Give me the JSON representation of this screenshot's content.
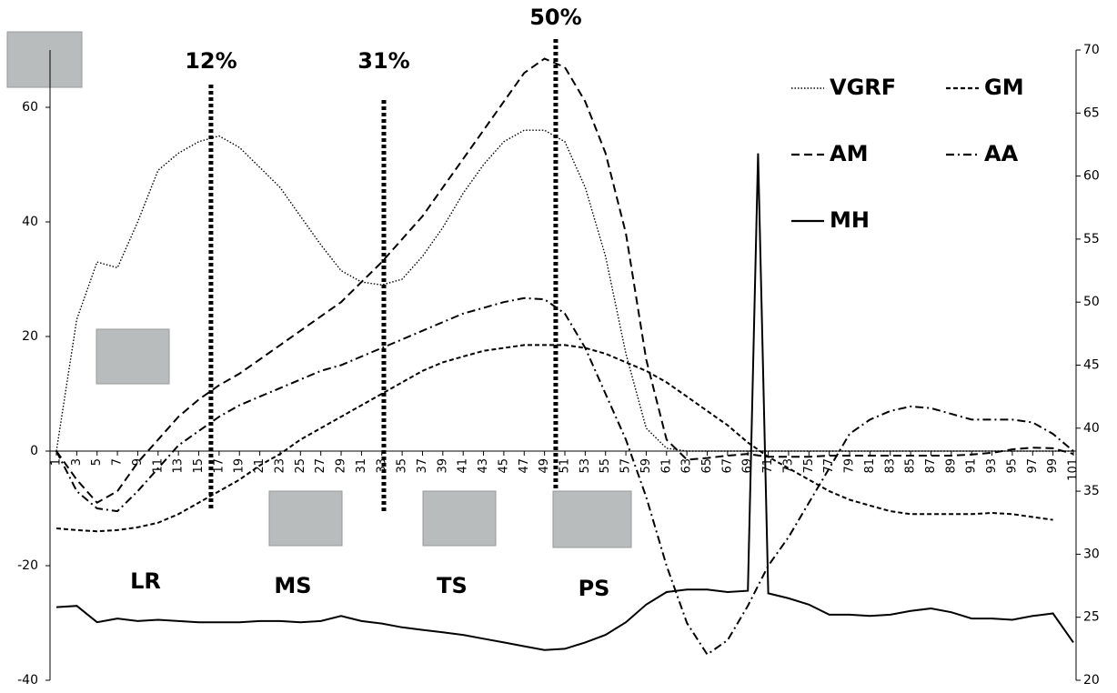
{
  "chart_data": {
    "type": "line",
    "x": [
      1,
      3,
      5,
      7,
      9,
      11,
      13,
      15,
      17,
      19,
      21,
      23,
      25,
      27,
      29,
      31,
      33,
      35,
      37,
      39,
      41,
      43,
      45,
      47,
      49,
      51,
      53,
      55,
      57,
      59,
      61,
      63,
      65,
      67,
      69,
      71,
      73,
      75,
      77,
      79,
      81,
      83,
      85,
      87,
      89,
      91,
      93,
      95,
      97,
      99,
      101
    ],
    "xlim": [
      1,
      101
    ],
    "ylim": [
      -40,
      70
    ],
    "yticks": [
      -40,
      -20,
      0,
      20,
      40,
      60
    ],
    "y2lim": [
      20,
      70
    ],
    "y2ticks": [
      20,
      25,
      30,
      35,
      40,
      45,
      50,
      55,
      60,
      65,
      70
    ],
    "legend": "top-right",
    "series": [
      {
        "name": "VGRF",
        "color": "#000000",
        "dash": "dotted",
        "values": [
          0,
          23,
          33,
          32,
          40,
          49,
          52,
          54,
          55,
          53,
          49.5,
          46,
          41,
          36,
          31.5,
          29.5,
          29,
          30,
          34,
          39,
          45,
          50,
          54,
          56,
          56,
          54,
          46,
          34,
          17,
          4,
          0.5,
          0,
          0,
          0,
          0,
          0,
          0,
          0,
          0,
          0,
          0,
          0,
          0,
          0,
          0,
          0,
          0,
          0,
          0,
          0,
          0
        ]
      },
      {
        "name": "GM",
        "color": "#000000",
        "dash": "short-dash",
        "values": [
          -13.5,
          -13.8,
          -14,
          -13.8,
          -13.3,
          -12.5,
          -11,
          -9,
          -7,
          -5,
          -2.5,
          -0.5,
          2,
          4,
          6,
          8,
          10,
          12,
          14,
          15.5,
          16.5,
          17.5,
          18,
          18.5,
          18.5,
          18.5,
          18,
          17,
          15.5,
          14,
          12,
          9.5,
          7,
          4.5,
          1.5,
          -1,
          -3,
          -5,
          -7,
          -8.5,
          -9.5,
          -10.5,
          -11,
          -11,
          -11,
          -11,
          -10.8,
          -11,
          -11.5,
          -12,
          null
        ]
      },
      {
        "name": "AM",
        "color": "#000000",
        "dash": "dashed",
        "values": [
          0,
          -5,
          -9,
          -7,
          -2,
          2,
          6,
          9,
          11.5,
          13.5,
          16,
          18.5,
          21,
          23.5,
          26,
          29.5,
          33,
          37,
          41,
          46,
          51,
          56,
          61,
          66,
          68.5,
          67,
          61,
          52,
          38,
          16,
          2,
          -1.5,
          -1.2,
          -0.8,
          -0.5,
          -1,
          -1,
          -1,
          -0.8,
          -0.8,
          -0.8,
          -0.8,
          -0.8,
          -0.8,
          -0.8,
          -0.6,
          -0.3,
          0.3,
          0.6,
          0.5,
          -0.5
        ]
      },
      {
        "name": "AA",
        "color": "#000000",
        "dash": "dash-dot",
        "values": [
          0,
          -7,
          -10,
          -10.5,
          -7,
          -3,
          1,
          3.5,
          6,
          8,
          9.5,
          11,
          12.5,
          14,
          15,
          16.5,
          18,
          19.5,
          21,
          22.5,
          24,
          25,
          26,
          26.7,
          26.5,
          24,
          18,
          10,
          2,
          -8,
          -20,
          -30,
          -35.5,
          -33,
          -27,
          -20,
          -15,
          -9,
          -3,
          3,
          5.5,
          7,
          7.8,
          7.5,
          6.5,
          5.5,
          5.5,
          5.5,
          5,
          3,
          0
        ]
      },
      {
        "name": "MH",
        "color": "#000000",
        "dash": "solid",
        "axis": "y2",
        "x": [
          1,
          3,
          5,
          7,
          9,
          11,
          13,
          15,
          17,
          19,
          21,
          23,
          25,
          27,
          29,
          31,
          33,
          35,
          37,
          39,
          41,
          43,
          45,
          47,
          49,
          51,
          53,
          55,
          57,
          59,
          61,
          63,
          65,
          67,
          69,
          70,
          71,
          73,
          75,
          77,
          79,
          81,
          83,
          85,
          87,
          89,
          91,
          93,
          95,
          97,
          99,
          101
        ],
        "values": [
          25.8,
          25.9,
          24.6,
          24.9,
          24.7,
          24.8,
          24.7,
          24.6,
          24.6,
          24.6,
          24.7,
          24.7,
          24.6,
          24.7,
          25.1,
          24.7,
          24.5,
          24.2,
          24,
          23.8,
          23.6,
          23.3,
          23,
          22.7,
          22.4,
          22.5,
          23,
          23.6,
          24.6,
          26,
          27,
          27.2,
          27.2,
          27,
          27.1,
          61.8,
          26.9,
          26.5,
          26,
          25.2,
          25.2,
          25.1,
          25.2,
          25.5,
          25.7,
          25.4,
          24.9,
          24.9,
          24.8,
          25.1,
          25.3,
          23
        ]
      }
    ],
    "annotations": [
      {
        "text": "12%",
        "x": 16.2
      },
      {
        "text": "31%",
        "x": 33.2
      },
      {
        "text": "50%",
        "x": 50.1
      }
    ],
    "phases": [
      "LR",
      "MS",
      "TS",
      "PS"
    ]
  }
}
